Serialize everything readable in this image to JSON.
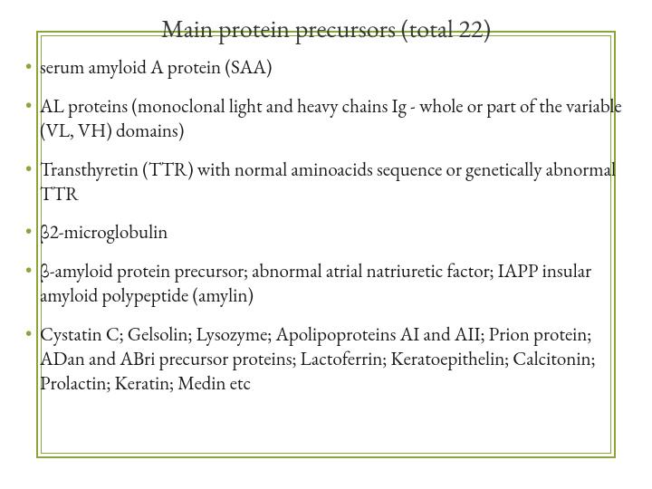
{
  "title": "Main protein precursors (total 22)",
  "bullet_color": "#8aa53a",
  "frame_color": "#8aa53a",
  "title_color": "#383838",
  "text_color": "#1a1a1a",
  "background_color": "#ffffff",
  "title_fontsize": 28,
  "body_fontsize": 21,
  "items": [
    "serum amyloid A protein (SAA)",
    "AL proteins (monoclonal light and heavy chains Ig -  whole or part of  the variable (VL, VH) domains)",
    "Transthyretin (TTR) with normal aminoacids sequence or genetically abnormal TTR",
    "β2-microglobulin",
    "β-amyloid protein precursor; abnormal atrial natriuretic factor;  IAPP insular amyloid polypeptide (amylin)",
    "Cystatin C; Gelsolin; Lysozyme; Apolipoproteins AI and AII; Prion protein; ADan and ABri precursor proteins; Lactoferrin; Keratoepithelin; Calcitonin; Prolactin; Keratin; Medin  etc"
  ]
}
